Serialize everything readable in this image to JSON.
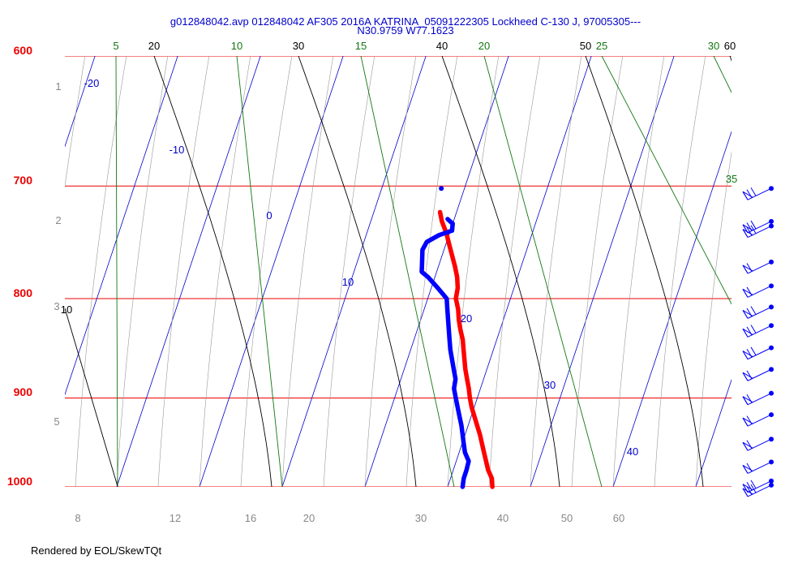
{
  "chart_data": {
    "type": "skew-t",
    "title_line1": "g012848042.avp 012848042 AF305 2016A KATRINA_05091222305 Lockheed C-130 J, 97005305---",
    "title_line2": "N30.9759 W77.1623",
    "pressure_levels": [
      "600",
      "700",
      "800",
      "900",
      "1000"
    ],
    "isotherm_labels": [
      "-20",
      "-10",
      "0",
      "10",
      "20",
      "30",
      "40"
    ],
    "dry_adiabat_labels": [
      "10",
      "20",
      "30",
      "40",
      "50",
      "60"
    ],
    "mixing_ratio_labels": [
      "5",
      "10",
      "15",
      "20",
      "25",
      "30",
      "35"
    ],
    "bottom_labels": [
      "8",
      "12",
      "16",
      "20",
      "30",
      "40",
      "50",
      "60"
    ],
    "left_labels": [
      "1",
      "2",
      "3",
      "5"
    ],
    "series": [
      {
        "name": "Temperature",
        "color": "#ff0000",
        "points": [
          {
            "p": 1000,
            "t": 25.4
          },
          {
            "p": 990,
            "t": 25.0
          },
          {
            "p": 980,
            "t": 24.2
          },
          {
            "p": 970,
            "t": 23.6
          },
          {
            "p": 960,
            "t": 23.0
          },
          {
            "p": 950,
            "t": 22.4
          },
          {
            "p": 940,
            "t": 21.8
          },
          {
            "p": 930,
            "t": 21.1
          },
          {
            "p": 920,
            "t": 20.4
          },
          {
            "p": 910,
            "t": 19.7
          },
          {
            "p": 900,
            "t": 19.1
          },
          {
            "p": 890,
            "t": 18.6
          },
          {
            "p": 880,
            "t": 18.0
          },
          {
            "p": 870,
            "t": 17.4
          },
          {
            "p": 860,
            "t": 16.9
          },
          {
            "p": 850,
            "t": 16.4
          },
          {
            "p": 840,
            "t": 15.9
          },
          {
            "p": 830,
            "t": 15.2
          },
          {
            "p": 820,
            "t": 14.6
          },
          {
            "p": 810,
            "t": 14.1
          },
          {
            "p": 800,
            "t": 13.4
          },
          {
            "p": 790,
            "t": 13.2
          },
          {
            "p": 780,
            "t": 12.7
          },
          {
            "p": 770,
            "t": 12.0
          },
          {
            "p": 760,
            "t": 11.2
          },
          {
            "p": 750,
            "t": 10.4
          },
          {
            "p": 740,
            "t": 9.6
          },
          {
            "p": 730,
            "t": 8.6
          },
          {
            "p": 722,
            "t": 8.0
          }
        ]
      },
      {
        "name": "Dew Point",
        "color": "#0000ff",
        "points": [
          {
            "p": 1000,
            "t": 21.8
          },
          {
            "p": 990,
            "t": 21.6
          },
          {
            "p": 980,
            "t": 21.6
          },
          {
            "p": 970,
            "t": 21.5
          },
          {
            "p": 960,
            "t": 20.7
          },
          {
            "p": 950,
            "t": 20.2
          },
          {
            "p": 940,
            "t": 19.7
          },
          {
            "p": 930,
            "t": 19.2
          },
          {
            "p": 920,
            "t": 18.6
          },
          {
            "p": 910,
            "t": 18.0
          },
          {
            "p": 900,
            "t": 17.4
          },
          {
            "p": 890,
            "t": 16.8
          },
          {
            "p": 880,
            "t": 16.6
          },
          {
            "p": 870,
            "t": 16.0
          },
          {
            "p": 860,
            "t": 15.4
          },
          {
            "p": 850,
            "t": 14.8
          },
          {
            "p": 840,
            "t": 14.3
          },
          {
            "p": 830,
            "t": 13.8
          },
          {
            "p": 820,
            "t": 13.3
          },
          {
            "p": 810,
            "t": 12.8
          },
          {
            "p": 800,
            "t": 12.3
          },
          {
            "p": 790,
            "t": 10.8
          },
          {
            "p": 780,
            "t": 9.2
          },
          {
            "p": 775,
            "t": 8.2
          },
          {
            "p": 765,
            "t": 7.8
          },
          {
            "p": 755,
            "t": 7.4
          },
          {
            "p": 748,
            "t": 7.6
          },
          {
            "p": 742,
            "t": 8.8
          },
          {
            "p": 738,
            "t": 10.2
          },
          {
            "p": 732,
            "t": 10.0
          },
          {
            "p": 728,
            "t": 9.2
          }
        ]
      }
    ],
    "isolated_point": {
      "p": 702,
      "t": 7.2
    },
    "wind_barbs": [
      {
        "p": 702,
        "speed": 25
      },
      {
        "p": 730,
        "speed": 25
      },
      {
        "p": 734,
        "speed": 30
      },
      {
        "p": 766,
        "speed": 20
      },
      {
        "p": 788,
        "speed": 20
      },
      {
        "p": 808,
        "speed": 25
      },
      {
        "p": 826,
        "speed": 25
      },
      {
        "p": 848,
        "speed": 25
      },
      {
        "p": 870,
        "speed": 20
      },
      {
        "p": 895,
        "speed": 20
      },
      {
        "p": 918,
        "speed": 20
      },
      {
        "p": 945,
        "speed": 20
      },
      {
        "p": 971,
        "speed": 15
      },
      {
        "p": 993,
        "speed": 25
      },
      {
        "p": 998,
        "speed": 30
      }
    ],
    "credit": "Rendered by EOL/SkewTQt"
  }
}
